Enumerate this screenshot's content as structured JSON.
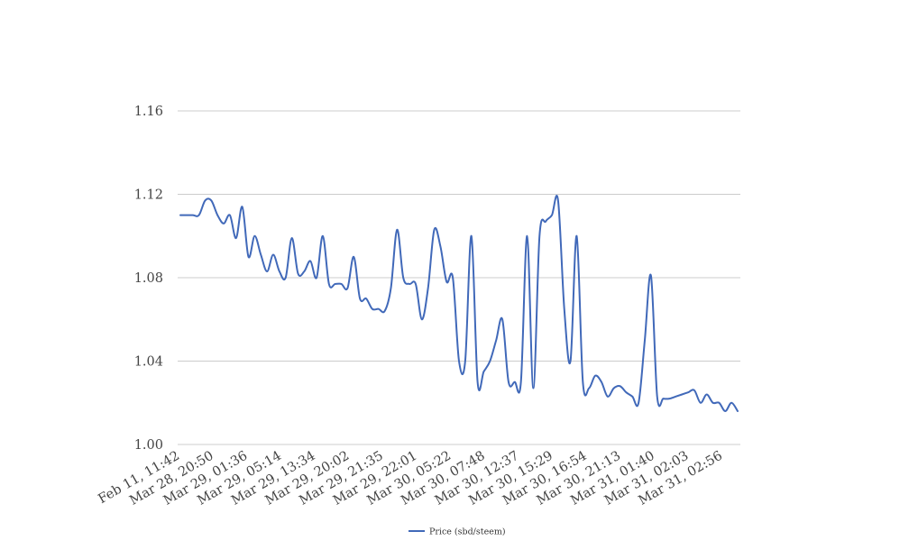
{
  "chart_data": {
    "type": "line",
    "title": "",
    "xlabel": "",
    "ylabel": "",
    "ylim": [
      1.0,
      1.16
    ],
    "yticks": [
      "1.00",
      "1.04",
      "1.08",
      "1.12",
      "1.16"
    ],
    "ytick_values": [
      1.0,
      1.04,
      1.08,
      1.12,
      1.16
    ],
    "grid": "horizontal",
    "legend_position": "bottom",
    "colors": {
      "series": "#4169b9",
      "grid": "#cccccc",
      "text": "#444444"
    },
    "x_tick_labels": [
      "Feb 11, 11:42",
      "Mar 28, 20:50",
      "Mar 29, 01:36",
      "Mar 29, 05:14",
      "Mar 29, 13:34",
      "Mar 29, 20:02",
      "Mar 29, 21:35",
      "Mar 29, 22:01",
      "Mar 30, 05:22",
      "Mar 30, 07:48",
      "Mar 30, 12:37",
      "Mar 30, 15:29",
      "Mar 30, 16:54",
      "Mar 30, 21:13",
      "Mar 31, 01:40",
      "Mar 31, 02:03",
      "Mar 31, 02:56"
    ],
    "series": [
      {
        "name": "Price (sbd/steem)",
        "values": [
          1.11,
          1.11,
          1.11,
          1.11,
          1.117,
          1.117,
          1.11,
          1.106,
          1.11,
          1.099,
          1.114,
          1.09,
          1.1,
          1.091,
          1.083,
          1.091,
          1.083,
          1.08,
          1.099,
          1.082,
          1.083,
          1.088,
          1.08,
          1.1,
          1.077,
          1.077,
          1.077,
          1.075,
          1.09,
          1.07,
          1.07,
          1.065,
          1.065,
          1.064,
          1.075,
          1.103,
          1.08,
          1.077,
          1.077,
          1.06,
          1.075,
          1.103,
          1.095,
          1.078,
          1.08,
          1.04,
          1.04,
          1.1,
          1.03,
          1.035,
          1.04,
          1.05,
          1.06,
          1.03,
          1.03,
          1.03,
          1.1,
          1.027,
          1.1,
          1.107,
          1.11,
          1.117,
          1.065,
          1.04,
          1.1,
          1.03,
          1.027,
          1.033,
          1.03,
          1.023,
          1.027,
          1.028,
          1.025,
          1.023,
          1.02,
          1.05,
          1.081,
          1.023,
          1.022,
          1.022,
          1.023,
          1.024,
          1.025,
          1.026,
          1.02,
          1.024,
          1.02,
          1.02,
          1.016,
          1.02,
          1.016
        ]
      }
    ]
  }
}
